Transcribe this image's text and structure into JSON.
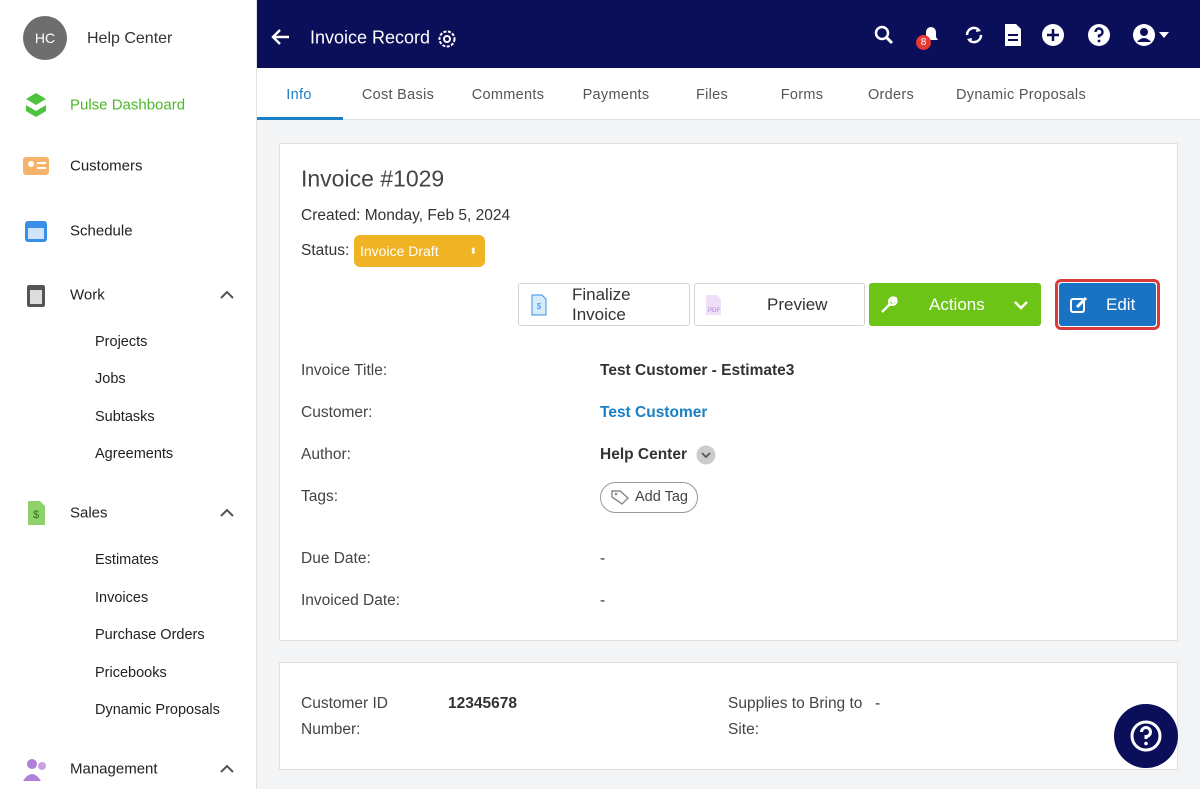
{
  "sidebar": {
    "avatar": "HC",
    "user": "Help Center",
    "nav": [
      {
        "label": "Pulse Dashboard"
      },
      {
        "label": "Customers"
      },
      {
        "label": "Schedule"
      },
      {
        "label": "Work",
        "children": [
          "Projects",
          "Jobs",
          "Subtasks",
          "Agreements"
        ]
      },
      {
        "label": "Sales",
        "children": [
          "Estimates",
          "Invoices",
          "Purchase Orders",
          "Pricebooks",
          "Dynamic Proposals"
        ]
      },
      {
        "label": "Management"
      }
    ]
  },
  "header": {
    "title": "Invoice Record",
    "badge": "8"
  },
  "tabs": [
    "Info",
    "Cost Basis",
    "Comments",
    "Payments",
    "Files",
    "Forms",
    "Orders",
    "Dynamic Proposals"
  ],
  "invoice": {
    "title": "Invoice #1029",
    "created": "Created: Monday, Feb 5, 2024",
    "status_label": "Status:",
    "status": "Invoice Draft",
    "buttons": [
      "Finalize Invoice",
      "Preview",
      "Actions",
      "Edit"
    ],
    "fields": [
      [
        "Invoice Title:",
        "Test Customer - Estimate3"
      ],
      [
        "Customer:",
        "Test Customer"
      ],
      [
        "Author:",
        "Help Center"
      ],
      [
        "Tags:",
        "Add Tag"
      ],
      [
        "Due Date:",
        "-"
      ],
      [
        "Invoiced Date:",
        "-"
      ]
    ]
  },
  "details": {
    "fields": [
      [
        "Customer ID Number:",
        "12345678"
      ],
      [
        "Supplies to Bring to Site:",
        "-"
      ]
    ]
  }
}
